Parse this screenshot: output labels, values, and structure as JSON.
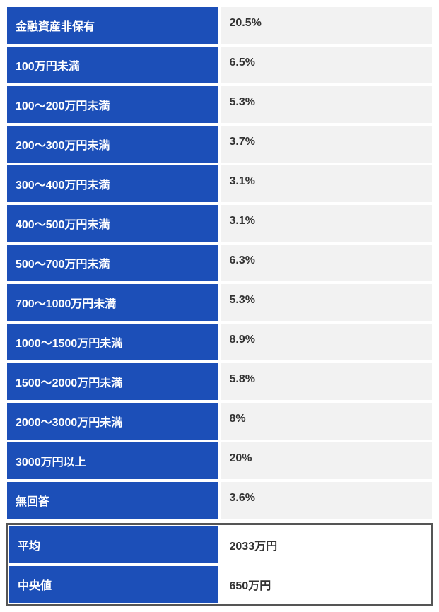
{
  "table": {
    "label_background": "#1c4fb8",
    "label_text_color": "#ffffff",
    "value_background": "#f2f2f2",
    "value_text_color": "#333333",
    "highlight_value_background": "#ffffff",
    "highlight_border_color": "#555555",
    "border_color": "#ffffff",
    "font_size": 16,
    "font_weight": "bold",
    "rows": [
      {
        "label": "金融資産非保有",
        "value": "20.5%"
      },
      {
        "label": "100万円未満",
        "value": "6.5%"
      },
      {
        "label": "100～200万円未満",
        "value": "5.3%"
      },
      {
        "label": "200～300万円未満",
        "value": "3.7%"
      },
      {
        "label": "300～400万円未満",
        "value": "3.1%"
      },
      {
        "label": "400～500万円未満",
        "value": "3.1%"
      },
      {
        "label": "500～700万円未満",
        "value": "6.3%"
      },
      {
        "label": "700～1000万円未満",
        "value": "5.3%"
      },
      {
        "label": "1000～1500万円未満",
        "value": "8.9%"
      },
      {
        "label": "1500～2000万円未満",
        "value": "5.8%"
      },
      {
        "label": "2000～3000万円未満",
        "value": "8%"
      },
      {
        "label": "3000万円以上",
        "value": "20%"
      },
      {
        "label": "無回答",
        "value": "3.6%"
      }
    ],
    "highlight_rows": [
      {
        "label": "平均",
        "value": "2033万円"
      },
      {
        "label": "中央値",
        "value": "650万円"
      }
    ]
  }
}
